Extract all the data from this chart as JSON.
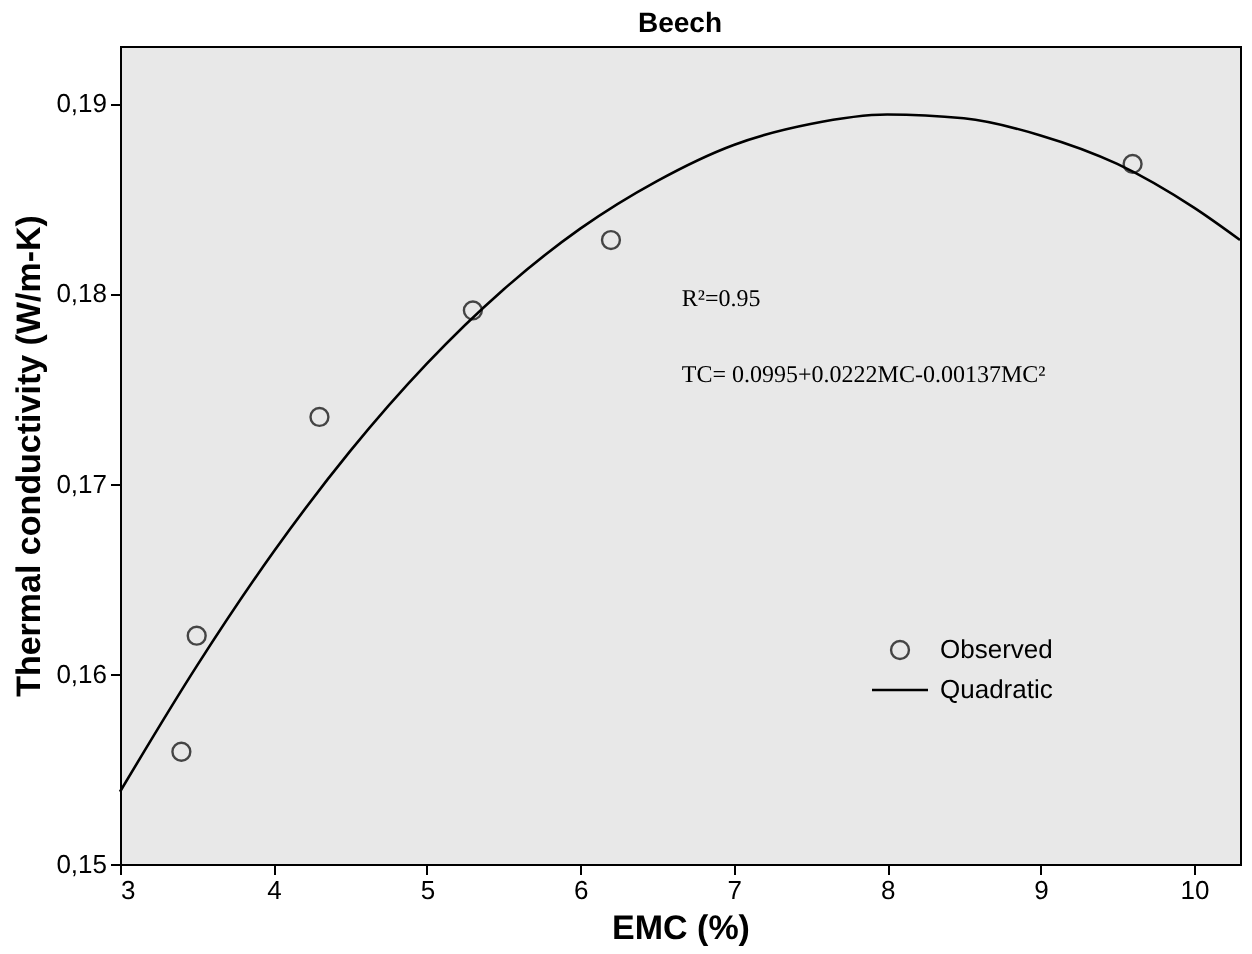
{
  "chart_data": {
    "type": "scatter",
    "title": "Beech",
    "xlabel": "EMC (%)",
    "ylabel": "Thermal conductivity (W/m-K)",
    "xlim": [
      3,
      10.3
    ],
    "xticks": [
      3,
      4,
      5,
      6,
      7,
      8,
      9,
      10
    ],
    "ylim": [
      0.15,
      0.193
    ],
    "yticks": [
      {
        "value": 0.15,
        "label": "0,15"
      },
      {
        "value": 0.16,
        "label": "0,16"
      },
      {
        "value": 0.17,
        "label": "0,17"
      },
      {
        "value": 0.18,
        "label": "0,18"
      },
      {
        "value": 0.19,
        "label": "0,19"
      }
    ],
    "series": [
      {
        "name": "Observed",
        "marker": "circle",
        "color": "#000000",
        "x": [
          3.4,
          3.5,
          4.3,
          5.3,
          6.2,
          9.6
        ],
        "values": [
          0.1559,
          0.162,
          0.1735,
          0.1791,
          0.1828,
          0.1868
        ]
      },
      {
        "name": "Quadratic",
        "type": "line",
        "marker": "none",
        "line_style": "solid",
        "color": "#000000",
        "x": [
          3,
          3.5,
          4,
          4.5,
          5,
          5.5,
          6,
          6.5,
          7,
          7.5,
          8,
          8.5,
          9,
          9.5,
          10,
          10.3
        ],
        "values": [
          0.1538,
          0.1604,
          0.1664,
          0.1717,
          0.1763,
          0.1802,
          0.1834,
          0.1859,
          0.1878,
          0.1889,
          0.1894,
          0.1892,
          0.1883,
          0.1868,
          0.1845,
          0.1828
        ]
      }
    ],
    "annotations": [
      "R²=0.95",
      "TC= 0.0995+0.0222MC-0.00137MC²"
    ],
    "grid": false,
    "legend": "bottom right"
  }
}
